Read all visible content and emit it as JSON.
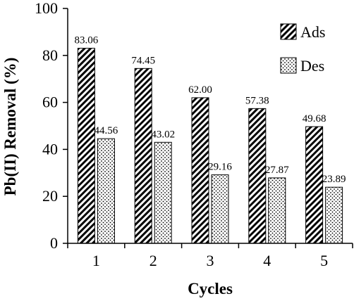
{
  "chart_data": {
    "type": "bar",
    "categories": [
      "1",
      "2",
      "3",
      "4",
      "5"
    ],
    "series": [
      {
        "name": "Ads",
        "values": [
          83.06,
          74.45,
          62.0,
          57.38,
          49.68
        ],
        "labels": [
          "83.06",
          "74.45",
          "62.00",
          "57.38",
          "49.68"
        ],
        "pattern": "diagonal-hatch"
      },
      {
        "name": "Des",
        "values": [
          44.56,
          43.02,
          29.16,
          27.87,
          23.89
        ],
        "labels": [
          "44.56",
          "43.02",
          "29.16",
          "27.87",
          "23.89"
        ],
        "pattern": "dots"
      }
    ],
    "title": "",
    "xlabel": "Cycles",
    "ylabel": "Pb(II) Removal (%)",
    "ylim": [
      0,
      100
    ],
    "yticks": [
      0,
      20,
      40,
      60,
      80,
      100
    ],
    "grid": false,
    "legend_position": "top-right",
    "colors": {
      "bar_stroke": "#000000",
      "hatch": "#000000",
      "background": "#ffffff"
    }
  }
}
